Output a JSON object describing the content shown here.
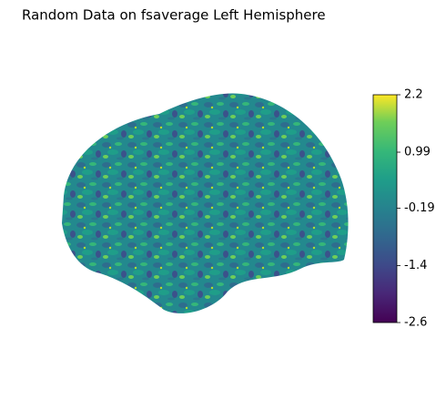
{
  "chart_data": {
    "type": "surface",
    "title": "Random Data on fsaverage Left Hemisphere",
    "clim": [
      -2.6,
      2.2
    ],
    "cticks": [
      2.2,
      0.99,
      -0.19,
      -1.4,
      -2.6
    ]
  }
}
